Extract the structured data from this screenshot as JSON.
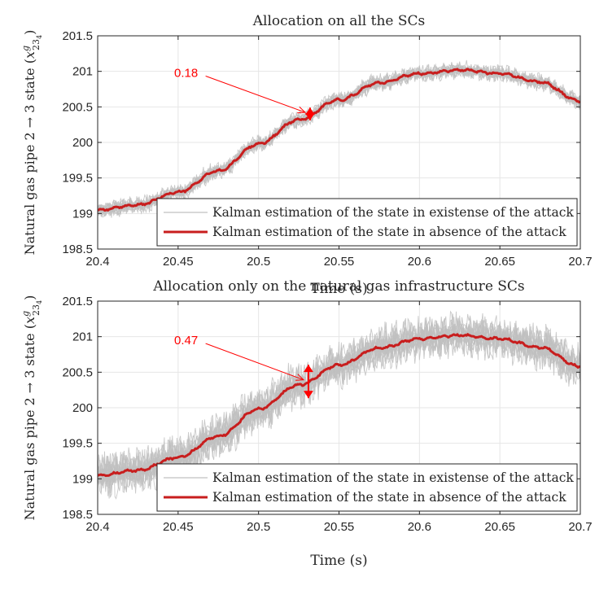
{
  "colors": {
    "attacked": "#c0c0c0",
    "nominal": "#c81e1e",
    "annotation": "#ff0000",
    "grid": "#e6e6e6",
    "axis": "#262626"
  },
  "chart_data": [
    {
      "type": "line",
      "title": "Allocation on all the SCs",
      "xlabel": "Time (s)",
      "ylabel": "Natural gas pipe 2 → 3 state (x^g_{23_4})",
      "ylabel_main": "Natural gas pipe 2  →  3 state (",
      "ylabel_var": "x",
      "ylabel_sup": "g",
      "ylabel_sub": "23",
      "ylabel_subsub": "4",
      "ylabel_close": ")",
      "xlim": [
        20.4,
        20.7
      ],
      "ylim": [
        198.5,
        201.5
      ],
      "xticks": [
        20.4,
        20.45,
        20.5,
        20.55,
        20.6,
        20.65,
        20.7
      ],
      "xtick_labels": [
        "20.4",
        "20.45",
        "20.5",
        "20.55",
        "20.6",
        "20.65",
        "20.7"
      ],
      "yticks": [
        198.5,
        199,
        199.5,
        200,
        200.5,
        201,
        201.5
      ],
      "ytick_labels": [
        "198.5",
        "199",
        "199.5",
        "200",
        "200.5",
        "201",
        "201.5"
      ],
      "grid": true,
      "legend_position": "bottom-right",
      "series": [
        {
          "name": "Kalman estimation of the state in existense of the attack",
          "style": "band",
          "spread": 0.18,
          "x": [
            20.4,
            20.425,
            20.45,
            20.475,
            20.5,
            20.525,
            20.55,
            20.575,
            20.6,
            20.625,
            20.65,
            20.675,
            20.7
          ],
          "y": [
            199.05,
            199.12,
            199.3,
            199.6,
            199.98,
            200.32,
            200.6,
            200.84,
            200.97,
            201.02,
            200.97,
            200.85,
            200.58
          ]
        },
        {
          "name": "Kalman estimation of the state in absence of the attack",
          "style": "line",
          "x": [
            20.4,
            20.425,
            20.45,
            20.475,
            20.5,
            20.525,
            20.55,
            20.575,
            20.6,
            20.625,
            20.65,
            20.675,
            20.7
          ],
          "y": [
            199.05,
            199.12,
            199.3,
            199.6,
            199.98,
            200.32,
            200.6,
            200.84,
            200.97,
            201.02,
            200.97,
            200.85,
            200.58
          ]
        }
      ],
      "annotation": {
        "text": "0.18",
        "x": 20.532,
        "y": 200.4,
        "label_x": 20.46,
        "label_y": 200.98,
        "spread": 0.18
      }
    },
    {
      "type": "line",
      "title": "Allocation only on the natural gas infrastructure SCs",
      "xlabel": "Time (s)",
      "ylabel": "Natural gas pipe 2 → 3 state (x^g_{23_4})",
      "ylabel_main": "Natural gas pipe 2  →  3 state (",
      "ylabel_var": "x",
      "ylabel_sup": "g",
      "ylabel_sub": "23",
      "ylabel_subsub": "4",
      "ylabel_close": ")",
      "xlim": [
        20.4,
        20.7
      ],
      "ylim": [
        198.5,
        201.5
      ],
      "xticks": [
        20.4,
        20.45,
        20.5,
        20.55,
        20.6,
        20.65,
        20.7
      ],
      "xtick_labels": [
        "20.4",
        "20.45",
        "20.5",
        "20.55",
        "20.6",
        "20.65",
        "20.7"
      ],
      "yticks": [
        198.5,
        199,
        199.5,
        200,
        200.5,
        201,
        201.5
      ],
      "ytick_labels": [
        "198.5",
        "199",
        "199.5",
        "200",
        "200.5",
        "201",
        "201.5"
      ],
      "grid": true,
      "legend_position": "bottom-right",
      "series": [
        {
          "name": "Kalman estimation of the state in existense of the attack",
          "style": "band",
          "spread": 0.47,
          "x": [
            20.4,
            20.425,
            20.45,
            20.475,
            20.5,
            20.525,
            20.55,
            20.575,
            20.6,
            20.625,
            20.65,
            20.675,
            20.7
          ],
          "y": [
            199.05,
            199.12,
            199.3,
            199.6,
            199.98,
            200.32,
            200.6,
            200.84,
            200.97,
            201.02,
            200.97,
            200.85,
            200.58
          ]
        },
        {
          "name": "Kalman estimation of the state in absence of the attack",
          "style": "line",
          "x": [
            20.4,
            20.425,
            20.45,
            20.475,
            20.5,
            20.525,
            20.55,
            20.575,
            20.6,
            20.625,
            20.65,
            20.675,
            20.7
          ],
          "y": [
            199.05,
            199.12,
            199.3,
            199.6,
            199.98,
            200.32,
            200.6,
            200.84,
            200.97,
            201.02,
            200.97,
            200.85,
            200.58
          ]
        }
      ],
      "annotation": {
        "text": "0.47",
        "x": 20.531,
        "y": 200.37,
        "label_x": 20.46,
        "label_y": 200.95,
        "spread": 0.47
      }
    }
  ]
}
